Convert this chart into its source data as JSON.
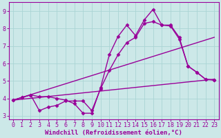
{
  "xlabel": "Windchill (Refroidissement éolien,°C)",
  "bg_color": "#cce8e8",
  "line_color": "#990099",
  "xlim": [
    -0.5,
    23.5
  ],
  "ylim": [
    2.8,
    9.5
  ],
  "xticks": [
    0,
    1,
    2,
    3,
    4,
    5,
    6,
    7,
    8,
    9,
    10,
    11,
    12,
    13,
    14,
    15,
    16,
    17,
    18,
    19,
    20,
    21,
    22,
    23
  ],
  "yticks": [
    3,
    4,
    5,
    6,
    7,
    8,
    9
  ],
  "line1_x": [
    0,
    1,
    2,
    3,
    4,
    5,
    6,
    7,
    8,
    9,
    10,
    11,
    12,
    13,
    14,
    15,
    16,
    17,
    18,
    19,
    20,
    21,
    22,
    23
  ],
  "line1_y": [
    3.9,
    4.05,
    4.2,
    4.1,
    4.1,
    4.0,
    3.9,
    3.7,
    3.15,
    3.15,
    4.6,
    6.5,
    7.55,
    8.2,
    7.6,
    8.5,
    9.1,
    8.2,
    8.2,
    7.5,
    5.85,
    5.5,
    5.1,
    5.05
  ],
  "line2_x": [
    0,
    1,
    2,
    3,
    4,
    5,
    6,
    7,
    8,
    9,
    10,
    11,
    12,
    13,
    14,
    15,
    16,
    17,
    18,
    19,
    20,
    21,
    22,
    23
  ],
  "line2_y": [
    3.9,
    4.05,
    4.2,
    3.3,
    3.5,
    3.6,
    3.85,
    3.85,
    3.85,
    3.3,
    4.55,
    5.6,
    6.5,
    7.2,
    7.5,
    8.3,
    8.4,
    8.2,
    8.15,
    7.4,
    5.85,
    5.5,
    5.1,
    5.05
  ],
  "line3_x": [
    0,
    23
  ],
  "line3_y": [
    3.9,
    7.5
  ],
  "line4_x": [
    0,
    23
  ],
  "line4_y": [
    3.9,
    5.1
  ],
  "grid_color": "#aad4d4",
  "marker": "D",
  "markersize": 2.5,
  "linewidth": 1.0,
  "xlabel_fontsize": 6.5,
  "tick_fontsize": 6
}
